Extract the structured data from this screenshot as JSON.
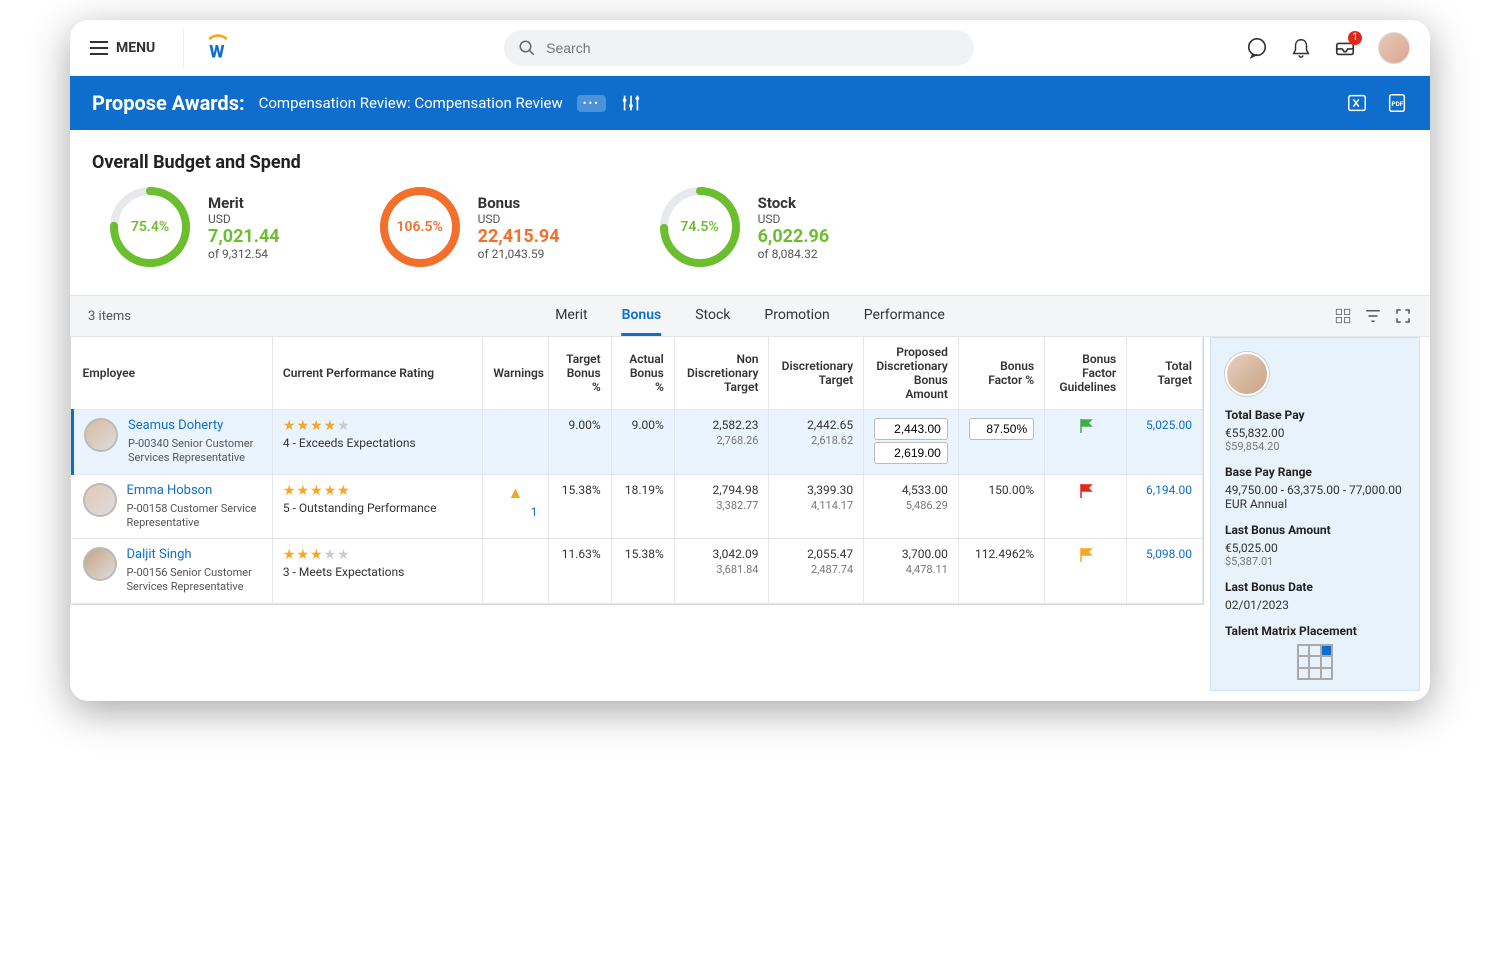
{
  "topbar": {
    "menu_label": "MENU",
    "search_placeholder": "Search",
    "inbox_badge": "1"
  },
  "header": {
    "title": "Propose Awards:",
    "subtitle": "Compensation Review: Compensation Review",
    "pill": "•••"
  },
  "section": {
    "title": "Overall Budget and Spend"
  },
  "budgets": [
    {
      "name": "Merit",
      "currency": "USD",
      "value": "7,021.44",
      "of": "of 9,312.54",
      "pct_label": "75.4%",
      "pct": 75.4,
      "color": "#6bbf2f"
    },
    {
      "name": "Bonus",
      "currency": "USD",
      "value": "22,415.94",
      "of": "of 21,043.59",
      "pct_label": "106.5%",
      "pct": 106.5,
      "color": "#f36f2c"
    },
    {
      "name": "Stock",
      "currency": "USD",
      "value": "6,022.96",
      "of": "of 8,084.32",
      "pct_label": "74.5%",
      "pct": 74.5,
      "color": "#6bbf2f"
    }
  ],
  "tabstrip": {
    "count": "3 items",
    "tabs": [
      "Merit",
      "Bonus",
      "Stock",
      "Promotion",
      "Performance"
    ],
    "active": "Bonus"
  },
  "columns": [
    "Employee",
    "Current Performance Rating",
    "Warnings",
    "Target Bonus %",
    "Actual Bonus %",
    "Non Discretionary Target",
    "Discretionary Target",
    "Proposed Discretionary Bonus Amount",
    "Bonus Factor %",
    "Bonus Factor Guidelines",
    "Total Target"
  ],
  "rows": [
    {
      "selected": true,
      "name": "Seamus Doherty",
      "sub": "P-00340 Senior Customer Services Representative",
      "stars": 4,
      "stars_max": 5,
      "rating_text": "4 - Exceeds Expectations",
      "warning": "",
      "warn_count": "",
      "target_pct": "9.00%",
      "actual_pct": "9.00%",
      "nondisc": "2,582.23",
      "nondisc2": "2,768.26",
      "disc": "2,442.65",
      "disc2": "2,618.62",
      "proposed": "2,443.00",
      "proposed2": "2,619.00",
      "proposed_input": true,
      "bf": "87.50%",
      "bf_input": true,
      "flag": "green",
      "total": "5,025.00"
    },
    {
      "selected": false,
      "name": "Emma Hobson",
      "sub": "P-00158 Customer Service Representative",
      "stars": 5,
      "stars_max": 5,
      "rating_text": "5 - Outstanding Performance",
      "warning": "▲",
      "warn_count": "1",
      "target_pct": "15.38%",
      "actual_pct": "18.19%",
      "nondisc": "2,794.98",
      "nondisc2": "3,382.77",
      "disc": "3,399.30",
      "disc2": "4,114.17",
      "proposed": "4,533.00",
      "proposed2": "5,486.29",
      "proposed_input": false,
      "bf": "150.00%",
      "bf_input": false,
      "flag": "red",
      "total": "6,194.00"
    },
    {
      "selected": false,
      "name": "Daljit Singh",
      "sub": "P-00156 Senior Customer Services Representative",
      "stars": 3,
      "stars_max": 5,
      "rating_text": "3 - Meets Expectations",
      "warning": "",
      "warn_count": "",
      "target_pct": "11.63%",
      "actual_pct": "15.38%",
      "nondisc": "3,042.09",
      "nondisc2": "3,681.84",
      "disc": "2,055.47",
      "disc2": "2,487.74",
      "proposed": "3,700.00",
      "proposed2": "4,478.11",
      "proposed_input": false,
      "bf": "112.4962%",
      "bf_input": false,
      "flag": "yellow",
      "total": "5,098.00"
    }
  ],
  "sidepanel": {
    "total_base_label": "Total Base Pay",
    "total_base": "€55,832.00",
    "total_base_sub": "$59,854.20",
    "range_label": "Base Pay Range",
    "range": "49,750.00 - 63,375.00 - 77,000.00 EUR Annual",
    "last_bonus_label": "Last Bonus Amount",
    "last_bonus": "€5,025.00",
    "last_bonus_sub": "$5,387.01",
    "last_date_label": "Last Bonus Date",
    "last_date": "02/01/2023",
    "matrix_label": "Talent Matrix Placement",
    "matrix_cell": 2
  },
  "flag_colors": {
    "green": "#3fae49",
    "red": "#e0291d",
    "yellow": "#f5a623"
  },
  "avatar_colors": [
    "#d8b9a1",
    "#e3c8b7",
    "#c9a284"
  ]
}
